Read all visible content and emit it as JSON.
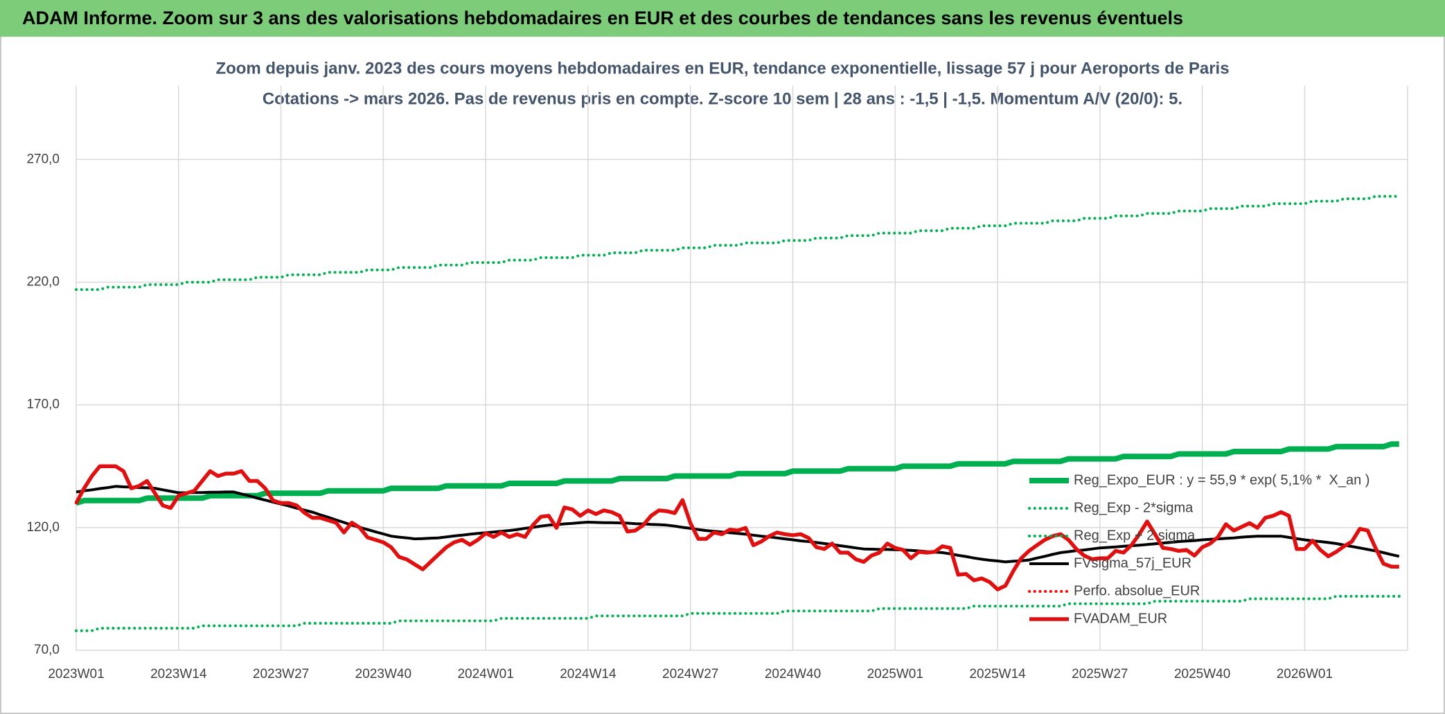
{
  "chart_data": {
    "type": "line",
    "title": "ADAM Informe. Zoom sur 3 ans des valorisations hebdomadaires en EUR et des courbes de tendances sans les revenus éventuels",
    "subtitle": [
      "Zoom depuis janv. 2023 des cours moyens hebdomadaires en EUR, tendance exponentielle, lissage 57 j pour Aeroports de Paris",
      "Cotations -> mars 2026. Pas de revenus pris en compte. Z-score 10 sem | 28 ans : -1,5 | -1,5. Momentum A/V (20/0): 5."
    ],
    "categories": [
      "2023W01",
      null,
      null,
      null,
      null,
      null,
      null,
      null,
      null,
      null,
      null,
      null,
      null,
      "2023W14",
      null,
      null,
      null,
      null,
      null,
      null,
      null,
      null,
      null,
      null,
      null,
      null,
      "2023W27",
      null,
      null,
      null,
      null,
      null,
      null,
      null,
      null,
      null,
      null,
      null,
      null,
      "2023W40",
      null,
      null,
      null,
      null,
      null,
      null,
      null,
      null,
      null,
      null,
      null,
      null,
      "2024W01",
      null,
      null,
      null,
      null,
      null,
      null,
      null,
      null,
      null,
      null,
      null,
      null,
      "2024W14",
      null,
      null,
      null,
      null,
      null,
      null,
      null,
      null,
      null,
      null,
      null,
      null,
      "2024W27",
      null,
      null,
      null,
      null,
      null,
      null,
      null,
      null,
      null,
      null,
      null,
      null,
      "2024W40",
      null,
      null,
      null,
      null,
      null,
      null,
      null,
      null,
      null,
      null,
      null,
      null,
      "2025W01",
      null,
      null,
      null,
      null,
      null,
      null,
      null,
      null,
      null,
      null,
      null,
      null,
      "2025W14",
      null,
      null,
      null,
      null,
      null,
      null,
      null,
      null,
      null,
      null,
      null,
      null,
      "2025W27",
      null,
      null,
      null,
      null,
      null,
      null,
      null,
      null,
      null,
      null,
      null,
      null,
      "2025W40",
      null,
      null,
      null,
      null,
      null,
      null,
      null,
      null,
      null,
      null,
      null,
      null,
      "2026W01",
      null,
      null,
      null,
      null,
      null,
      null,
      null,
      null,
      null,
      null,
      null,
      null
    ],
    "ylim": [
      70,
      300
    ],
    "yticks": [
      {
        "value": 70,
        "label": "70,0"
      },
      {
        "value": 120,
        "label": "120,0"
      },
      {
        "value": 170,
        "label": "170,0"
      },
      {
        "value": 220,
        "label": "220,0"
      },
      {
        "value": 270,
        "label": "270,0"
      }
    ],
    "grid": true,
    "legend": "right",
    "series": [
      {
        "name": "Reg_Expo_EUR : y = 55,9 * exp( 5,1% *  X_an )",
        "color": "#00b050",
        "style": "solid",
        "width": 8,
        "values": [
          130,
          131,
          131,
          131,
          131,
          131,
          131,
          131,
          131,
          132,
          132,
          132,
          132,
          132,
          132,
          132,
          132,
          133,
          133,
          133,
          133,
          133,
          133,
          133,
          134,
          134,
          134,
          134,
          134,
          134,
          134,
          134,
          135,
          135,
          135,
          135,
          135,
          135,
          135,
          135,
          136,
          136,
          136,
          136,
          136,
          136,
          136,
          137,
          137,
          137,
          137,
          137,
          137,
          137,
          137,
          138,
          138,
          138,
          138,
          138,
          138,
          138,
          139,
          139,
          139,
          139,
          139,
          139,
          139,
          140,
          140,
          140,
          140,
          140,
          140,
          140,
          141,
          141,
          141,
          141,
          141,
          141,
          141,
          141,
          142,
          142,
          142,
          142,
          142,
          142,
          142,
          143,
          143,
          143,
          143,
          143,
          143,
          143,
          144,
          144,
          144,
          144,
          144,
          144,
          144,
          145,
          145,
          145,
          145,
          145,
          145,
          145,
          146,
          146,
          146,
          146,
          146,
          146,
          146,
          147,
          147,
          147,
          147,
          147,
          147,
          147,
          148,
          148,
          148,
          148,
          148,
          148,
          148,
          149,
          149,
          149,
          149,
          149,
          149,
          149,
          150,
          150,
          150,
          150,
          150,
          150,
          150,
          151,
          151,
          151,
          151,
          151,
          151,
          151,
          152,
          152,
          152,
          152,
          152,
          152,
          153,
          153,
          153,
          153,
          153,
          153,
          153,
          154,
          154
        ]
      },
      {
        "name": "Reg_Exp - 2*sigma",
        "color": "#00b050",
        "style": "dotted",
        "width": 4,
        "values": [
          78,
          78,
          78,
          79,
          79,
          79,
          79,
          79,
          79,
          79,
          79,
          79,
          79,
          79,
          79,
          79,
          80,
          80,
          80,
          80,
          80,
          80,
          80,
          80,
          80,
          80,
          80,
          80,
          80,
          81,
          81,
          81,
          81,
          81,
          81,
          81,
          81,
          81,
          81,
          81,
          81,
          82,
          82,
          82,
          82,
          82,
          82,
          82,
          82,
          82,
          82,
          82,
          82,
          82,
          83,
          83,
          83,
          83,
          83,
          83,
          83,
          83,
          83,
          83,
          83,
          83,
          84,
          84,
          84,
          84,
          84,
          84,
          84,
          84,
          84,
          84,
          84,
          84,
          85,
          85,
          85,
          85,
          85,
          85,
          85,
          85,
          85,
          85,
          85,
          85,
          86,
          86,
          86,
          86,
          86,
          86,
          86,
          86,
          86,
          86,
          86,
          86,
          87,
          87,
          87,
          87,
          87,
          87,
          87,
          87,
          87,
          87,
          87,
          87,
          88,
          88,
          88,
          88,
          88,
          88,
          88,
          88,
          88,
          88,
          88,
          88,
          89,
          89,
          89,
          89,
          89,
          89,
          89,
          89,
          89,
          89,
          89,
          90,
          90,
          90,
          90,
          90,
          90,
          90,
          90,
          90,
          90,
          90,
          90,
          91,
          91,
          91,
          91,
          91,
          91,
          91,
          91,
          91,
          91,
          91,
          92,
          92,
          92,
          92,
          92,
          92,
          92,
          92,
          92
        ]
      },
      {
        "name": "Reg_Exp + 2 sigma",
        "color": "#00b050",
        "style": "dotted",
        "width": 4,
        "values": [
          217,
          217,
          217,
          217,
          218,
          218,
          218,
          218,
          218,
          219,
          219,
          219,
          219,
          219,
          220,
          220,
          220,
          220,
          221,
          221,
          221,
          221,
          221,
          222,
          222,
          222,
          222,
          223,
          223,
          223,
          223,
          223,
          224,
          224,
          224,
          224,
          224,
          225,
          225,
          225,
          225,
          226,
          226,
          226,
          226,
          226,
          227,
          227,
          227,
          227,
          228,
          228,
          228,
          228,
          228,
          229,
          229,
          229,
          229,
          230,
          230,
          230,
          230,
          230,
          231,
          231,
          231,
          231,
          232,
          232,
          232,
          232,
          233,
          233,
          233,
          233,
          233,
          234,
          234,
          234,
          234,
          235,
          235,
          235,
          235,
          236,
          236,
          236,
          236,
          236,
          237,
          237,
          237,
          237,
          238,
          238,
          238,
          238,
          239,
          239,
          239,
          239,
          240,
          240,
          240,
          240,
          240,
          241,
          241,
          241,
          241,
          242,
          242,
          242,
          242,
          243,
          243,
          243,
          243,
          244,
          244,
          244,
          244,
          244,
          245,
          245,
          245,
          245,
          246,
          246,
          246,
          246,
          247,
          247,
          247,
          247,
          248,
          248,
          248,
          248,
          249,
          249,
          249,
          249,
          250,
          250,
          250,
          250,
          251,
          251,
          251,
          251,
          252,
          252,
          252,
          252,
          252,
          253,
          253,
          253,
          253,
          254,
          254,
          254,
          254,
          255,
          255,
          255,
          255
        ]
      },
      {
        "name": "FVsigma_57j_EUR",
        "color": "#000000",
        "style": "solid",
        "width": 4,
        "values": [
          134.5,
          135.0,
          135.4,
          135.9,
          136.3,
          136.8,
          136.6,
          136.5,
          136.3,
          136.2,
          136.0,
          135.4,
          134.8,
          134.2,
          134.2,
          134.3,
          134.3,
          134.4,
          134.4,
          134.5,
          134.5,
          133.7,
          132.9,
          132.0,
          131.2,
          130.4,
          129.6,
          128.8,
          127.9,
          127.1,
          126.3,
          125.2,
          124.2,
          123.1,
          122.1,
          121.0,
          120.1,
          119.2,
          118.3,
          117.4,
          116.5,
          116.1,
          115.8,
          115.4,
          115.5,
          115.7,
          115.8,
          116.2,
          116.6,
          116.9,
          117.3,
          117.6,
          117.9,
          118.2,
          118.5,
          118.8,
          119.2,
          119.7,
          120.1,
          120.6,
          121.0,
          121.2,
          121.5,
          121.7,
          122.0,
          122.2,
          122.1,
          122.0,
          122.0,
          121.9,
          121.8,
          121.6,
          121.5,
          121.3,
          121.2,
          121.0,
          120.6,
          120.1,
          119.7,
          119.2,
          118.8,
          118.5,
          118.2,
          117.9,
          117.6,
          117.3,
          116.9,
          116.5,
          116.2,
          115.8,
          115.4,
          115.0,
          114.6,
          114.3,
          113.9,
          113.5,
          113.1,
          112.6,
          112.2,
          111.7,
          111.3,
          111.2,
          111.1,
          111.1,
          111.0,
          110.9,
          110.7,
          110.5,
          110.2,
          110.0,
          109.8,
          109.3,
          108.7,
          108.2,
          107.6,
          107.1,
          106.7,
          106.4,
          106.0,
          106.3,
          106.5,
          106.8,
          107.6,
          108.3,
          109.1,
          109.8,
          110.2,
          110.6,
          110.9,
          111.3,
          111.7,
          111.9,
          112.1,
          112.4,
          112.6,
          112.8,
          113.1,
          113.4,
          113.7,
          114.0,
          114.3,
          114.5,
          114.7,
          115.0,
          115.2,
          115.4,
          115.6,
          115.8,
          116.1,
          116.3,
          116.5,
          116.5,
          116.5,
          116.5,
          116.0,
          115.5,
          115.0,
          114.6,
          114.3,
          113.9,
          113.5,
          112.9,
          112.3,
          111.7,
          111.1,
          110.5,
          109.8,
          109.0,
          108.3
        ]
      },
      {
        "name": "Perfo. absolue_EUR",
        "color": "#ff0000",
        "style": "dotted",
        "width": 4,
        "values": [
          130,
          136,
          141,
          145,
          145,
          145,
          143,
          136,
          137,
          139,
          134,
          129,
          128,
          133,
          134,
          135,
          139,
          143,
          141,
          142,
          142,
          143,
          139,
          139,
          136,
          131,
          130,
          130,
          129,
          126,
          124,
          124,
          123,
          122,
          118,
          122,
          120,
          116,
          115,
          114,
          112,
          108,
          107,
          105,
          103,
          106,
          109,
          112,
          114,
          115,
          113,
          115,
          117.7,
          116.2,
          118,
          116.2,
          117.3,
          116.2,
          121,
          124.4,
          124.8,
          119.9,
          128.2,
          127.4,
          124.8,
          127,
          125.5,
          127,
          126.3,
          124.8,
          118.4,
          118.8,
          121,
          124.8,
          127,
          126.7,
          125.9,
          131.2,
          121.8,
          115.4,
          115.4,
          118,
          117.3,
          119.2,
          118.8,
          119.9,
          112.8,
          114.3,
          116.5,
          118,
          117.3,
          116.9,
          117.3,
          115.8,
          112,
          111.3,
          113.5,
          109.8,
          109.8,
          107.1,
          106,
          108.6,
          109.8,
          113.5,
          111.7,
          110.9,
          107.5,
          110.1,
          109.8,
          110.1,
          112.4,
          111.7,
          100.8,
          101.1,
          98.5,
          99.3,
          97.8,
          94.8,
          96.3,
          102.3,
          107.5,
          110.5,
          112.8,
          115,
          116.5,
          117.3,
          115,
          111.3,
          108.6,
          107.1,
          107.5,
          107.5,
          110.5,
          109.8,
          112.8,
          117.3,
          122.5,
          117.3,
          111.7,
          111.3,
          110.5,
          110.9,
          108.6,
          112,
          113.5,
          116.2,
          121.4,
          118.8,
          120.3,
          121.8,
          119.9,
          124,
          124.8,
          126.3,
          124.8,
          111.3,
          111.3,
          114.7,
          110.9,
          108.3,
          110.1,
          112.4,
          114.3,
          119.5,
          118.8,
          111.7,
          105.3,
          104.1,
          104.1
        ]
      },
      {
        "name": "FVADAM_EUR",
        "color": "#e01010",
        "style": "solid",
        "width": 5.5,
        "values": [
          130,
          136,
          141,
          145,
          145,
          145,
          143,
          136,
          137,
          139,
          134,
          129,
          128,
          133,
          134,
          135,
          139,
          143,
          141,
          142,
          142,
          143,
          139,
          139,
          136,
          131,
          130,
          130,
          129,
          126,
          124,
          124,
          123,
          122,
          118,
          122,
          120,
          116,
          115,
          114,
          112,
          108,
          107,
          105,
          103,
          106,
          109,
          112,
          114,
          115,
          113,
          115,
          117.7,
          116.2,
          118,
          116.2,
          117.3,
          116.2,
          121,
          124.4,
          124.8,
          119.9,
          128.2,
          127.4,
          124.8,
          127,
          125.5,
          127,
          126.3,
          124.8,
          118.4,
          118.8,
          121,
          124.8,
          127,
          126.7,
          125.9,
          131.2,
          121.8,
          115.4,
          115.4,
          118,
          117.3,
          119.2,
          118.8,
          119.9,
          112.8,
          114.3,
          116.5,
          118,
          117.3,
          116.9,
          117.3,
          115.8,
          112,
          111.3,
          113.5,
          109.8,
          109.8,
          107.1,
          106,
          108.6,
          109.8,
          113.5,
          111.7,
          110.9,
          107.5,
          110.1,
          109.8,
          110.1,
          112.4,
          111.7,
          100.8,
          101.1,
          98.5,
          99.3,
          97.8,
          94.8,
          96.3,
          102.3,
          107.5,
          110.5,
          112.8,
          115,
          116.5,
          117.3,
          115,
          111.3,
          108.6,
          107.1,
          107.5,
          107.5,
          110.5,
          109.8,
          112.8,
          117.3,
          122.5,
          117.3,
          111.7,
          111.3,
          110.5,
          110.9,
          108.6,
          112,
          113.5,
          116.2,
          121.4,
          118.8,
          120.3,
          121.8,
          119.9,
          124,
          124.8,
          126.3,
          124.8,
          111.3,
          111.3,
          114.7,
          110.9,
          108.3,
          110.1,
          112.4,
          114.3,
          119.5,
          118.8,
          111.7,
          105.3,
          104.1,
          104.1
        ]
      }
    ]
  }
}
